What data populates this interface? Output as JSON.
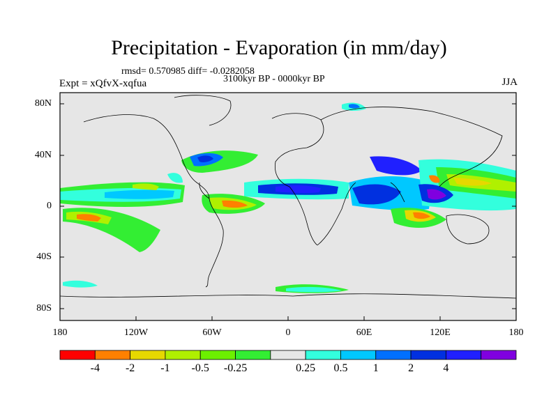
{
  "title": "Precipitation - Evaporation (in mm/day)",
  "stats": "rmsd= 0.570985  diff= -0.0282058",
  "period": "3100kyr BP - 0000kyr BP",
  "experiment": "Expt = xQfvX-xqfua",
  "season": "JJA",
  "lat_labels": [
    "80N",
    "40N",
    "0",
    "40S",
    "80S"
  ],
  "lon_labels": [
    "180",
    "120W",
    "60W",
    "0",
    "60E",
    "120E",
    "180"
  ],
  "colorbar": {
    "colors": [
      "#ff0000",
      "#ff8000",
      "#e6d800",
      "#b0f000",
      "#6cf000",
      "#33ee33",
      "#e6e6e6",
      "#33ffdd",
      "#00c8ff",
      "#0070ff",
      "#0030e0",
      "#2020ff",
      "#8000e0"
    ],
    "labels": [
      "-4",
      "-2",
      "-1",
      "-0.5",
      "-0.25",
      "0.25",
      "0.5",
      "1",
      "2",
      "4"
    ]
  },
  "background_color": "#e6e6e6"
}
